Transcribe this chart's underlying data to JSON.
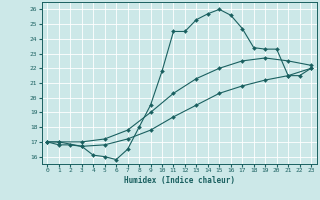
{
  "xlabel": "Humidex (Indice chaleur)",
  "xlim": [
    -0.5,
    23.5
  ],
  "ylim": [
    15.5,
    26.5
  ],
  "xticks": [
    0,
    1,
    2,
    3,
    4,
    5,
    6,
    7,
    8,
    9,
    10,
    11,
    12,
    13,
    14,
    15,
    16,
    17,
    18,
    19,
    20,
    21,
    22,
    23
  ],
  "yticks": [
    16,
    17,
    18,
    19,
    20,
    21,
    22,
    23,
    24,
    25,
    26
  ],
  "bg_color": "#cce8e8",
  "grid_color": "#b8d8d8",
  "line_color": "#1a6060",
  "line1_x": [
    0,
    1,
    2,
    3,
    4,
    5,
    6,
    7,
    8,
    9,
    10,
    11,
    12,
    13,
    14,
    15,
    16,
    17,
    18,
    19,
    20,
    21,
    22,
    23
  ],
  "line1_y": [
    17.0,
    16.8,
    16.8,
    16.7,
    16.1,
    16.0,
    15.8,
    16.5,
    18.0,
    19.5,
    21.8,
    24.5,
    24.5,
    25.3,
    25.7,
    26.0,
    25.6,
    24.7,
    23.4,
    23.3,
    23.3,
    21.5,
    21.5,
    22.0
  ],
  "line2_x": [
    0,
    1,
    3,
    5,
    7,
    9,
    11,
    13,
    15,
    17,
    19,
    21,
    23
  ],
  "line2_y": [
    17.0,
    17.0,
    17.0,
    17.2,
    17.8,
    19.0,
    20.3,
    21.3,
    22.0,
    22.5,
    22.7,
    22.5,
    22.2
  ],
  "line3_x": [
    0,
    1,
    3,
    5,
    7,
    9,
    11,
    13,
    15,
    17,
    19,
    21,
    23
  ],
  "line3_y": [
    17.0,
    17.0,
    16.7,
    16.8,
    17.2,
    17.8,
    18.7,
    19.5,
    20.3,
    20.8,
    21.2,
    21.5,
    22.0
  ]
}
